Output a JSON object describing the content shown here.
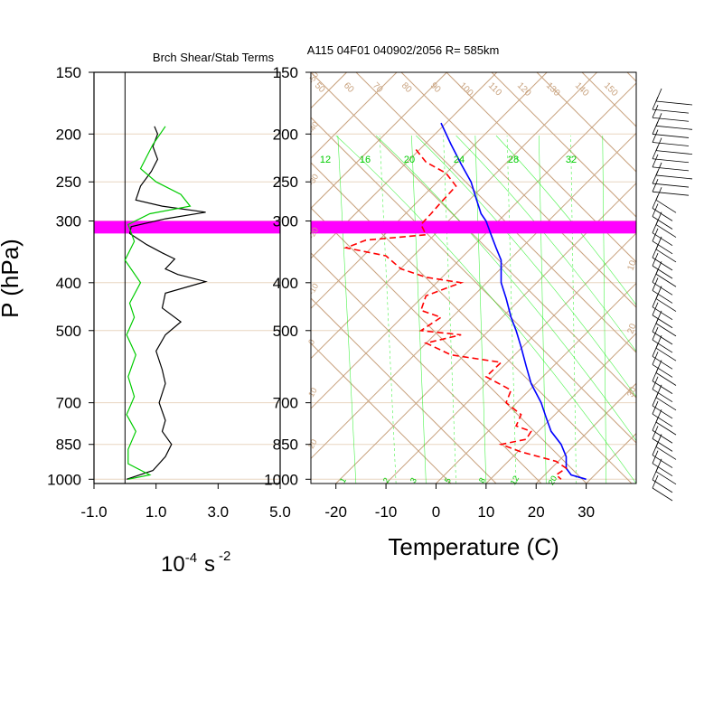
{
  "header": {
    "left_title": "Brch Shear/Stab Terms",
    "right_title": "A115 04F01 040902/2056 R= 585km"
  },
  "colors": {
    "shear": "#000000",
    "stability": "#00cc00",
    "temperature": "#0000ff",
    "dewpoint": "#ff0000",
    "highlight": "#ff00ff",
    "skewt_grid": "#c8a27e",
    "mixing_ratio": "#00ee00"
  },
  "chart_data": [
    {
      "type": "line",
      "ylabel": "P (hPa)",
      "y_scale": "log",
      "y_reversed": true,
      "ylim": [
        1020,
        150
      ],
      "yticks": [
        150,
        200,
        250,
        300,
        400,
        500,
        700,
        850,
        1000
      ],
      "ytick_labels": [
        "150",
        "200",
        "250",
        "300",
        "400",
        "500",
        "700",
        "850",
        "1000"
      ],
      "xlim": [
        -1.0,
        5.0
      ],
      "xticks": [
        -1.0,
        1.0,
        3.0,
        5.0
      ],
      "xtick_labels": [
        "-1.0",
        "1.0",
        "3.0",
        "5.0"
      ],
      "xlabel": "10-4 s-2",
      "xlabel_parts": {
        "base": "10",
        "exp1": "-4",
        "unit": "s",
        "exp2": "-2"
      },
      "highlight_band_hpa": [
        300,
        318
      ],
      "series": [
        {
          "points": [
            [
              0.95,
              193
            ],
            [
              1.05,
              200
            ],
            [
              0.9,
              212
            ],
            [
              1.05,
              225
            ],
            [
              0.85,
              238
            ],
            [
              0.5,
              255
            ],
            [
              0.35,
              272
            ],
            [
              1.2,
              280
            ],
            [
              2.6,
              288
            ],
            [
              1.3,
              297
            ],
            [
              0.2,
              308
            ],
            [
              0.15,
              318
            ],
            [
              0.7,
              335
            ],
            [
              1.2,
              348
            ],
            [
              1.6,
              358
            ],
            [
              1.3,
              375
            ],
            [
              1.7,
              385
            ],
            [
              2.6,
              398
            ],
            [
              1.3,
              420
            ],
            [
              1.2,
              450
            ],
            [
              1.8,
              480
            ],
            [
              1.3,
              510
            ],
            [
              1.0,
              550
            ],
            [
              1.2,
              600
            ],
            [
              1.3,
              640
            ],
            [
              1.1,
              700
            ],
            [
              1.3,
              760
            ],
            [
              1.2,
              800
            ],
            [
              1.5,
              850
            ],
            [
              1.3,
              900
            ],
            [
              0.9,
              960
            ],
            [
              0.05,
              1000
            ]
          ]
        },
        {
          "points": [
            [
              1.3,
              193
            ],
            [
              0.9,
              210
            ],
            [
              0.5,
              235
            ],
            [
              1.0,
              250
            ],
            [
              1.8,
              265
            ],
            [
              2.1,
              280
            ],
            [
              0.8,
              290
            ],
            [
              0.1,
              305
            ],
            [
              0.3,
              330
            ],
            [
              0.0,
              360
            ],
            [
              0.5,
              400
            ],
            [
              0.15,
              440
            ],
            [
              0.3,
              470
            ],
            [
              0.05,
              510
            ],
            [
              0.35,
              560
            ],
            [
              0.1,
              620
            ],
            [
              0.3,
              680
            ],
            [
              0.05,
              740
            ],
            [
              0.35,
              800
            ],
            [
              0.1,
              870
            ],
            [
              0.1,
              930
            ],
            [
              0.8,
              980
            ],
            [
              0.1,
              1000
            ]
          ]
        }
      ]
    },
    {
      "type": "line",
      "xlabel": "Temperature (C)",
      "xlim": [
        -25,
        40
      ],
      "xticks": [
        -20,
        -10,
        0,
        10,
        20,
        30
      ],
      "xtick_labels": [
        "-20",
        "-10",
        "0",
        "10",
        "20",
        "30"
      ],
      "y_scale": "log",
      "y_reversed": true,
      "ylim": [
        1020,
        150
      ],
      "yticks": [
        150,
        200,
        250,
        300,
        400,
        500,
        700,
        850,
        1000
      ],
      "ytick_labels": [
        "150",
        "200",
        "250",
        "300",
        "400",
        "500",
        "700",
        "850",
        "1000"
      ],
      "isotherm_labels": [
        "-50",
        "-40",
        "-30",
        "-20",
        "-10",
        "0",
        "10",
        "20",
        "30"
      ],
      "theta_labels": [
        "50",
        "60",
        "70",
        "80",
        "90",
        "100",
        "110",
        "120",
        "130",
        "140",
        "150"
      ],
      "theta_e_labels": [
        "12",
        "16",
        "20",
        "24",
        "28",
        "32"
      ],
      "mixing_ratio_labels": [
        "1",
        "2",
        "3",
        "5",
        "8",
        "12",
        "20"
      ],
      "side_labels": [
        "10",
        "20",
        "30"
      ],
      "series": [
        {
          "line_style": "solid",
          "points": [
            [
              1,
              190
            ],
            [
              3,
              210
            ],
            [
              5,
              230
            ],
            [
              7,
              250
            ],
            [
              8,
              270
            ],
            [
              9,
              290
            ],
            [
              10,
              300
            ],
            [
              11,
              320
            ],
            [
              12,
              340
            ],
            [
              13,
              360
            ],
            [
              13,
              400
            ],
            [
              14,
              430
            ],
            [
              15,
              470
            ],
            [
              16,
              500
            ],
            [
              17,
              540
            ],
            [
              18,
              590
            ],
            [
              19,
              640
            ],
            [
              21,
              700
            ],
            [
              22,
              750
            ],
            [
              23,
              800
            ],
            [
              25,
              850
            ],
            [
              26,
              900
            ],
            [
              26,
              950
            ],
            [
              27,
              980
            ],
            [
              30,
              1000
            ]
          ]
        },
        {
          "line_style": "dashed",
          "points": [
            [
              -4,
              215
            ],
            [
              -2,
              228
            ],
            [
              2,
              240
            ],
            [
              4,
              255
            ],
            [
              1,
              275
            ],
            [
              -1,
              290
            ],
            [
              -3,
              305
            ],
            [
              -2,
              320
            ],
            [
              -14,
              328
            ],
            [
              -18,
              340
            ],
            [
              -10,
              353
            ],
            [
              -7,
              375
            ],
            [
              -2,
              390
            ],
            [
              5,
              400
            ],
            [
              -2,
              425
            ],
            [
              -3,
              455
            ],
            [
              1,
              470
            ],
            [
              -3,
              500
            ],
            [
              5,
              510
            ],
            [
              -2,
              530
            ],
            [
              3,
              560
            ],
            [
              13,
              580
            ],
            [
              10,
              620
            ],
            [
              15,
              660
            ],
            [
              14,
              700
            ],
            [
              17,
              740
            ],
            [
              16,
              780
            ],
            [
              19,
              800
            ],
            [
              18,
              830
            ],
            [
              13,
              850
            ],
            [
              17,
              880
            ],
            [
              24,
              920
            ],
            [
              26,
              950
            ],
            [
              24,
              980
            ],
            [
              25,
              1000
            ]
          ]
        }
      ]
    }
  ],
  "wind_barbs": {
    "count": 48
  }
}
